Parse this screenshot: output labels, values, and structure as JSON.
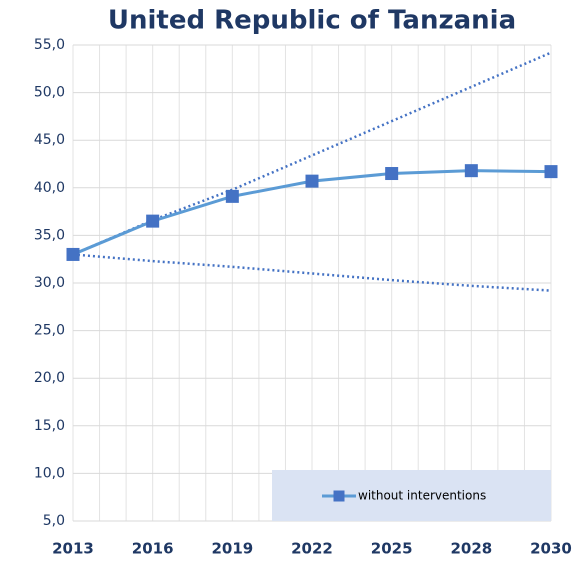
{
  "chart_data": {
    "type": "line",
    "title": "United Republic of Tanzania",
    "categories": [
      "2013",
      "2016",
      "2019",
      "2022",
      "2025",
      "2028",
      "2030"
    ],
    "series": [
      {
        "name": "without interventions",
        "color": "#4472c4",
        "line_color": "#5b9bd5",
        "marker": "square",
        "values": [
          33.0,
          36.5,
          39.1,
          40.7,
          41.5,
          41.8,
          41.7
        ]
      },
      {
        "color": "#4472c4",
        "style": "dotted",
        "values": [
          33.0,
          36.6,
          39.8,
          43.4,
          47.0,
          50.6,
          54.2
        ]
      },
      {
        "color": "#4472c4",
        "style": "dotted",
        "values": [
          33.0,
          32.3,
          31.7,
          31.0,
          30.3,
          29.7,
          29.2
        ]
      }
    ],
    "ylim": [
      5,
      55
    ],
    "yticks": [
      {
        "value": 5,
        "label": "5,0"
      },
      {
        "value": 10,
        "label": "10,0"
      },
      {
        "value": 15,
        "label": "15,0"
      },
      {
        "value": 20,
        "label": "20,0"
      },
      {
        "value": 25,
        "label": "25,0"
      },
      {
        "value": 30,
        "label": "30,0"
      },
      {
        "value": 35,
        "label": "35,0"
      },
      {
        "value": 40,
        "label": "40,0"
      },
      {
        "value": 45,
        "label": "45,0"
      },
      {
        "value": 50,
        "label": "50,0"
      },
      {
        "value": 55,
        "label": "55,0"
      }
    ],
    "grid": true,
    "legend": "bottom-right"
  }
}
